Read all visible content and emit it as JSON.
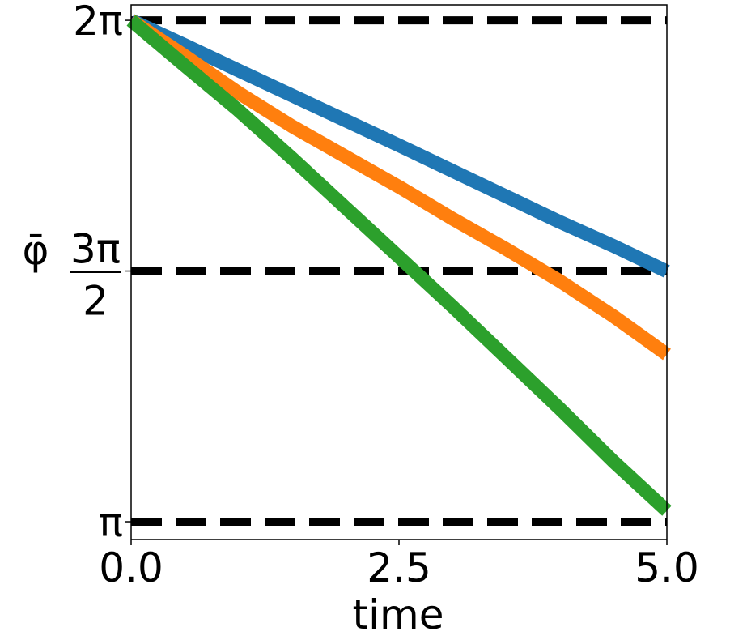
{
  "chart_data": {
    "type": "line",
    "xlabel": "time",
    "ylabel": "φ̄",
    "xlim": [
      0.0,
      5.0
    ],
    "ylim": [
      3.03,
      6.38
    ],
    "x_ticks": [
      {
        "value": 0.0,
        "label": "0.0"
      },
      {
        "value": 2.5,
        "label": "2.5"
      },
      {
        "value": 5.0,
        "label": "5.0"
      }
    ],
    "y_ticks": [
      {
        "value": 6.2832,
        "label": "2π"
      },
      {
        "value": 4.7124,
        "label_num": "3π",
        "label_den": "2"
      },
      {
        "value": 3.1416,
        "label": "π"
      }
    ],
    "reference_lines": [
      {
        "y": 6.2832,
        "style": "dashed",
        "color": "#000000"
      },
      {
        "y": 4.7124,
        "style": "dashed",
        "color": "#000000"
      },
      {
        "y": 3.1416,
        "style": "dashed",
        "color": "#000000"
      }
    ],
    "grid": false,
    "legend": "none",
    "series": [
      {
        "color": "#1f77b4",
        "x": [
          0.0,
          0.5,
          1.0,
          1.5,
          2.0,
          2.5,
          3.0,
          3.5,
          4.0,
          4.5,
          5.0
        ],
        "y": [
          6.283,
          6.128,
          5.97,
          5.813,
          5.656,
          5.5,
          5.34,
          5.18,
          5.02,
          4.87,
          4.71
        ]
      },
      {
        "color": "#ff7f0e",
        "x": [
          0.0,
          0.5,
          1.0,
          1.5,
          2.0,
          2.5,
          3.0,
          3.5,
          4.0,
          4.5,
          5.0
        ],
        "y": [
          6.283,
          6.06,
          5.83,
          5.62,
          5.43,
          5.24,
          5.04,
          4.85,
          4.65,
          4.43,
          4.19
        ]
      },
      {
        "color": "#2ca02c",
        "x": [
          0.0,
          0.5,
          1.0,
          1.5,
          2.0,
          2.5,
          3.0,
          3.5,
          4.0,
          4.5,
          5.0
        ],
        "y": [
          6.283,
          6.0,
          5.72,
          5.42,
          5.11,
          4.8,
          4.49,
          4.17,
          3.85,
          3.52,
          3.21
        ]
      }
    ]
  }
}
